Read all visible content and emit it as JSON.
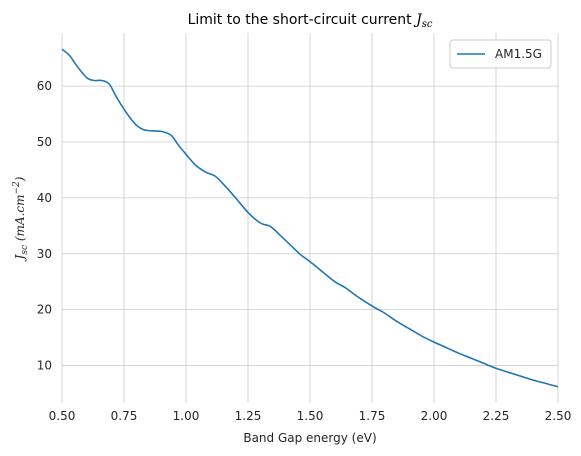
{
  "chart_data": {
    "type": "line",
    "title": "Limit to the short-circuit current",
    "title_math": "J",
    "title_math_sub": "sc",
    "xlabel": "Band Gap energy (eV)",
    "ylabel_math": "J",
    "ylabel_math_sub": "sc",
    "ylabel_units": "(mA.cm",
    "ylabel_units_sup": "−2",
    "ylabel_units_close": ")",
    "xlim": [
      0.5,
      2.5
    ],
    "ylim": [
      3.3,
      69.5
    ],
    "xticks": [
      "0.50",
      "0.75",
      "1.00",
      "1.25",
      "1.50",
      "1.75",
      "2.00",
      "2.25",
      "2.50"
    ],
    "yticks": [
      "10",
      "20",
      "30",
      "40",
      "50",
      "60"
    ],
    "grid": true,
    "legend_position": "upper-right",
    "series": [
      {
        "name": "AM1.5G",
        "color": "#1f77b4",
        "x": [
          0.5,
          0.53,
          0.56,
          0.6,
          0.63,
          0.66,
          0.69,
          0.72,
          0.76,
          0.8,
          0.83,
          0.86,
          0.9,
          0.94,
          0.97,
          1.0,
          1.04,
          1.08,
          1.12,
          1.16,
          1.2,
          1.25,
          1.3,
          1.34,
          1.38,
          1.42,
          1.46,
          1.5,
          1.55,
          1.6,
          1.64,
          1.68,
          1.72,
          1.76,
          1.8,
          1.85,
          1.9,
          1.95,
          2.0,
          2.05,
          2.1,
          2.15,
          2.2,
          2.25,
          2.3,
          2.35,
          2.4,
          2.45,
          2.5
        ],
        "y": [
          66.6,
          65.5,
          63.6,
          61.5,
          61.0,
          61.0,
          60.4,
          58.0,
          55.2,
          53.0,
          52.2,
          52.0,
          51.9,
          51.2,
          49.4,
          47.8,
          45.8,
          44.6,
          43.8,
          42.0,
          40.0,
          37.4,
          35.5,
          34.9,
          33.3,
          31.6,
          29.9,
          28.6,
          26.8,
          25.0,
          24.0,
          22.7,
          21.5,
          20.4,
          19.4,
          17.9,
          16.6,
          15.3,
          14.2,
          13.2,
          12.2,
          11.3,
          10.4,
          9.5,
          8.8,
          8.1,
          7.4,
          6.8,
          6.2
        ]
      }
    ]
  }
}
